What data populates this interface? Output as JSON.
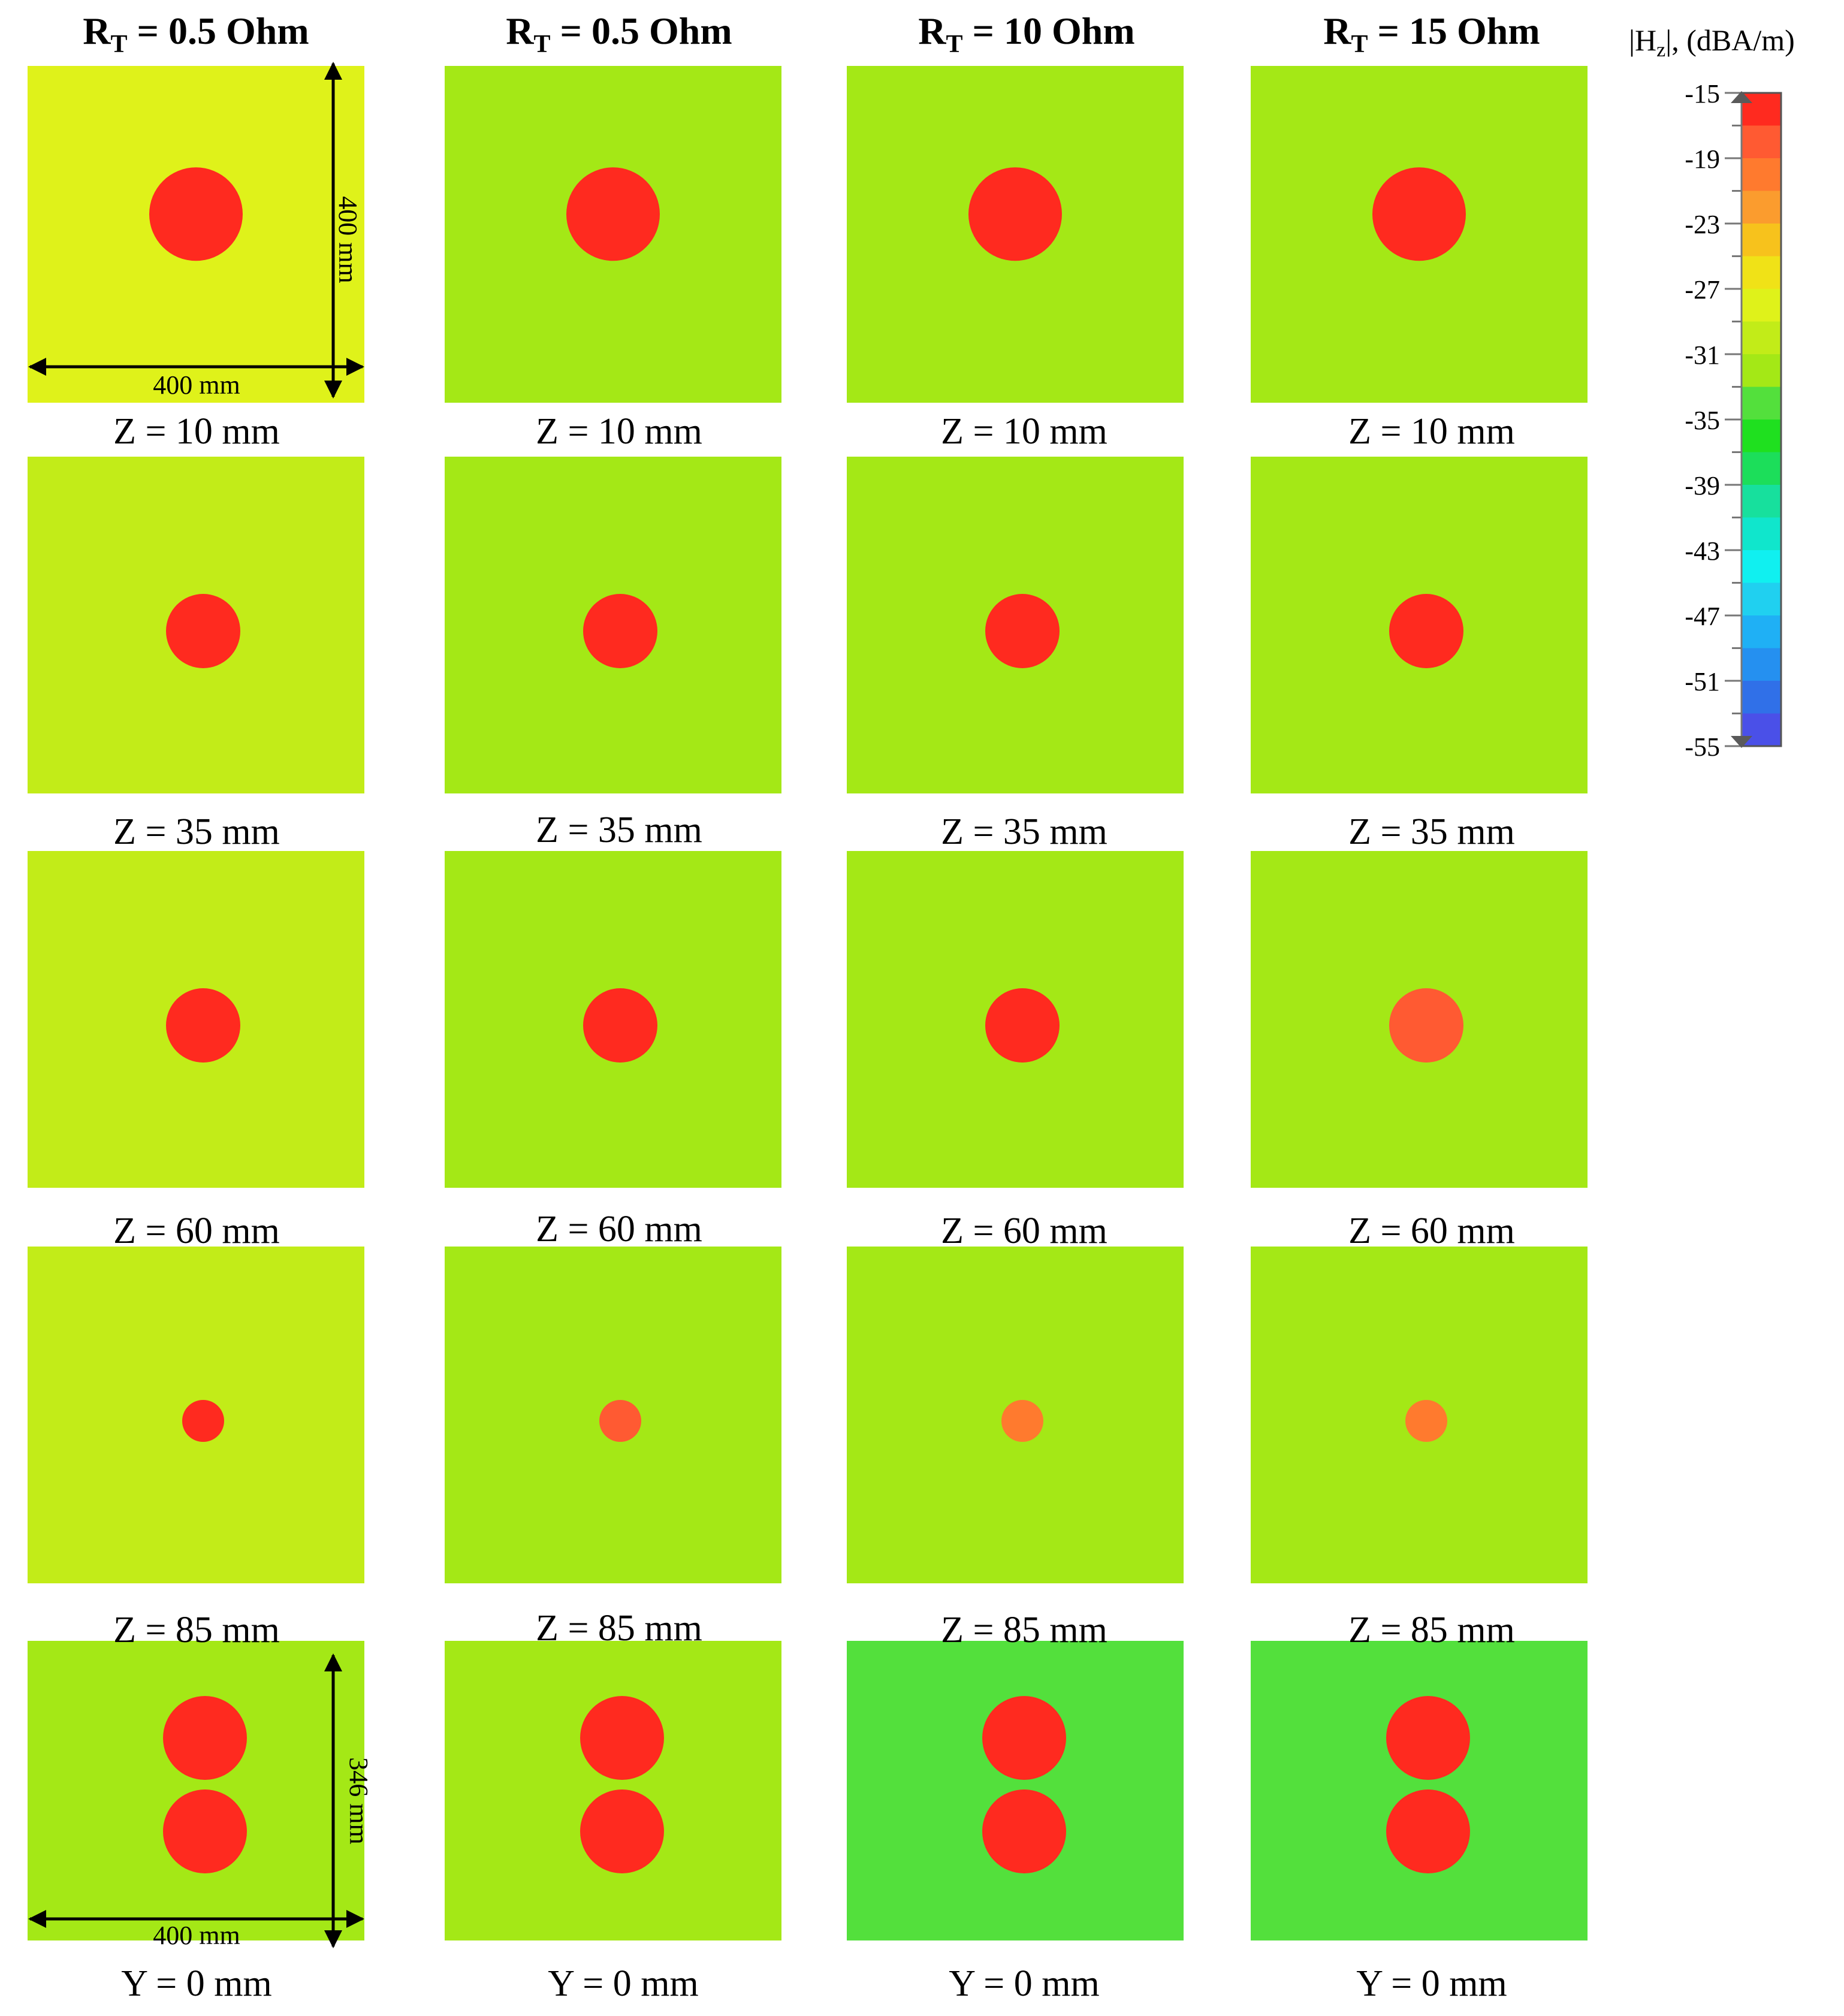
{
  "figure": {
    "column_headers": [
      {
        "symbol": "R",
        "subscript": "T",
        "value": " = 0.5 Ohm"
      },
      {
        "symbol": "R",
        "subscript": "T",
        "value": " = 0.5 Ohm"
      },
      {
        "symbol": "R",
        "subscript": "T",
        "value": " = 10 Ohm"
      },
      {
        "symbol": "R",
        "subscript": "T",
        "value": " = 15 Ohm"
      }
    ],
    "row_labels": [
      "Z = 10 mm",
      "Z = 35 mm",
      "Z = 60 mm",
      "Z = 85 mm",
      "Y = 0 mm"
    ],
    "dimensions": {
      "top_width": "400 mm",
      "top_height": "400 mm",
      "bottom_width": "400 mm",
      "bottom_height": "346 mm"
    }
  },
  "colorbar": {
    "title_prefix": "|H",
    "title_sub": "z",
    "title_suffix": "|, (dBA/m)",
    "tick_labels": [
      "-15",
      "-19",
      "-23",
      "-27",
      "-31",
      "-35",
      "-39",
      "-43",
      "-47",
      "-51",
      "-55"
    ],
    "levels": [
      -15,
      -17,
      -19,
      -21,
      -23,
      -25,
      -27,
      -29,
      -31,
      -33,
      -35,
      -37,
      -39,
      -41,
      -43,
      -45,
      -47,
      -49,
      -51,
      -53,
      -55
    ],
    "colors": [
      "#ff2a1f",
      "#ff5a32",
      "#ff7a2e",
      "#fb9c2e",
      "#f7c21c",
      "#f0e217",
      "#dff21a",
      "#c2ec18",
      "#a4e816",
      "#53e03c",
      "#1fe01f",
      "#1cde5a",
      "#17e09d",
      "#10e6cc",
      "#10f0f0",
      "#20d0f0",
      "#1fb0f5",
      "#2590f0",
      "#3070e8",
      "#4a50e8"
    ]
  },
  "chart_data": {
    "type": "heatmap",
    "quantity": "|Hz|",
    "units": "dBA/m",
    "color_range": [
      -55,
      -15
    ],
    "colorbar_ticks": [
      -15,
      -19,
      -23,
      -27,
      -31,
      -35,
      -39,
      -43,
      -47,
      -51,
      -55
    ],
    "columns": [
      "RT = 0.5 Ohm",
      "RT = 0.5 Ohm",
      "RT = 10 Ohm",
      "RT = 15 Ohm"
    ],
    "rows": [
      "Z = 10 mm",
      "Z = 35 mm",
      "Z = 60 mm",
      "Z = 85 mm",
      "Y = 0 mm"
    ],
    "panel_extent_xy_mm": [
      400,
      400
    ],
    "panel_extent_xz_mm": [
      400,
      346
    ],
    "panels": [
      {
        "row": "Z = 10 mm",
        "column": 0,
        "peak_level": -15,
        "background_level": -27
      },
      {
        "row": "Z = 10 mm",
        "column": 1,
        "peak_level": -15,
        "background_level": -31
      },
      {
        "row": "Z = 10 mm",
        "column": 2,
        "peak_level": -15,
        "background_level": -31
      },
      {
        "row": "Z = 10 mm",
        "column": 3,
        "peak_level": -15,
        "background_level": -31
      },
      {
        "row": "Z = 35 mm",
        "column": 0,
        "peak_level": -15,
        "background_level": -29
      },
      {
        "row": "Z = 35 mm",
        "column": 1,
        "peak_level": -15,
        "background_level": -31
      },
      {
        "row": "Z = 35 mm",
        "column": 2,
        "peak_level": -15,
        "background_level": -31
      },
      {
        "row": "Z = 35 mm",
        "column": 3,
        "peak_level": -15,
        "background_level": -31
      },
      {
        "row": "Z = 60 mm",
        "column": 0,
        "peak_level": -15,
        "background_level": -29
      },
      {
        "row": "Z = 60 mm",
        "column": 1,
        "peak_level": -15,
        "background_level": -31
      },
      {
        "row": "Z = 60 mm",
        "column": 2,
        "peak_level": -15,
        "background_level": -31
      },
      {
        "row": "Z = 60 mm",
        "column": 3,
        "peak_level": -17,
        "background_level": -31
      },
      {
        "row": "Z = 85 mm",
        "column": 0,
        "peak_level": -15,
        "background_level": -29
      },
      {
        "row": "Z = 85 mm",
        "column": 1,
        "peak_level": -17,
        "background_level": -31
      },
      {
        "row": "Z = 85 mm",
        "column": 2,
        "peak_level": -19,
        "background_level": -31
      },
      {
        "row": "Z = 85 mm",
        "column": 3,
        "peak_level": -19,
        "background_level": -31
      },
      {
        "row": "Y = 0 mm",
        "column": 0,
        "peak_level": -15,
        "background_level": -31
      },
      {
        "row": "Y = 0 mm",
        "column": 1,
        "peak_level": -15,
        "background_level": -31
      },
      {
        "row": "Y = 0 mm",
        "column": 2,
        "peak_level": -15,
        "background_level": -33
      },
      {
        "row": "Y = 0 mm",
        "column": 3,
        "peak_level": -15,
        "background_level": -33
      }
    ]
  }
}
